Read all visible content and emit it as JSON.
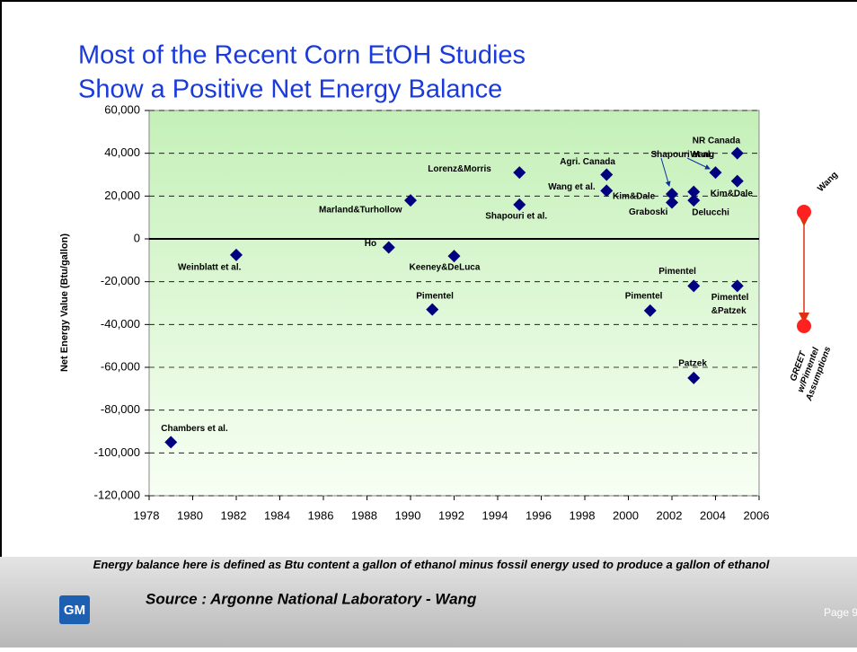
{
  "chart_data": {
    "type": "scatter",
    "title": [
      "Most of the Recent Corn EtOH Studies",
      "Show a Positive Net Energy Balance"
    ],
    "ylabel": "Net Energy Value (Btu/gallon)",
    "color": "#000080",
    "x": [
      1979,
      1982,
      1989,
      1990,
      1991,
      1992,
      1995,
      1995,
      1999,
      1999,
      2001,
      2002,
      2002,
      2003,
      2003,
      2003,
      2003,
      2004,
      2005,
      2005,
      2005
    ],
    "values": [
      -95000,
      -7500,
      -4000,
      18000,
      -33000,
      -8000,
      31000,
      16000,
      30000,
      22500,
      -33500,
      21000,
      17000,
      22000,
      18000,
      -22000,
      -65000,
      31000,
      40000,
      27000,
      -22000
    ],
    "labels": [
      "Chambers et al.",
      "Weinblatt et al.",
      "Ho",
      "Marland&Turhollow",
      "Pimentel",
      "Keeney&DeLuca",
      "Lorenz&Morris",
      "Shapouri et al.",
      "Agri. Canada",
      "Wang et al.",
      "Pimentel",
      "Kim&Dale",
      "Graboski",
      "Wang",
      "Delucchi",
      "Pimentel",
      "Patzek",
      "Shapouri et al.",
      "NR Canada",
      "Kim&Dale",
      [
        "Pimentel",
        "&Patzek"
      ]
    ],
    "xlim": [
      1978,
      2006
    ],
    "xticks": [
      1978,
      1980,
      1982,
      1984,
      1986,
      1988,
      1990,
      1992,
      1994,
      1996,
      1998,
      2000,
      2002,
      2004,
      2006
    ],
    "ylim": [
      -120000,
      60000
    ],
    "yticks": [
      {
        "value": -120000,
        "label": "-120,000"
      },
      {
        "value": -100000,
        "label": "-100,000"
      },
      {
        "value": -80000,
        "label": "-80,000"
      },
      {
        "value": -60000,
        "label": "-60,000"
      },
      {
        "value": -40000,
        "label": "-40,000"
      },
      {
        "value": -20000,
        "label": "-20,000"
      },
      0,
      {
        "value": 20000,
        "label": "20,000"
      },
      {
        "value": 40000,
        "label": "40,000"
      },
      {
        "value": 60000,
        "label": "60,000"
      }
    ],
    "grid": true
  },
  "annotations": {
    "upper": "Wang",
    "lower": [
      "GREET",
      "w/Pimentel",
      "Assumptions"
    ]
  },
  "footer": {
    "note": "Energy balance here is defined as Btu content a gallon of ethanol minus fossil energy used to produce a gallon of ethanol",
    "source": "Source : Argonne National Laboratory - Wang",
    "page": "Page 9",
    "logo": "GM"
  }
}
